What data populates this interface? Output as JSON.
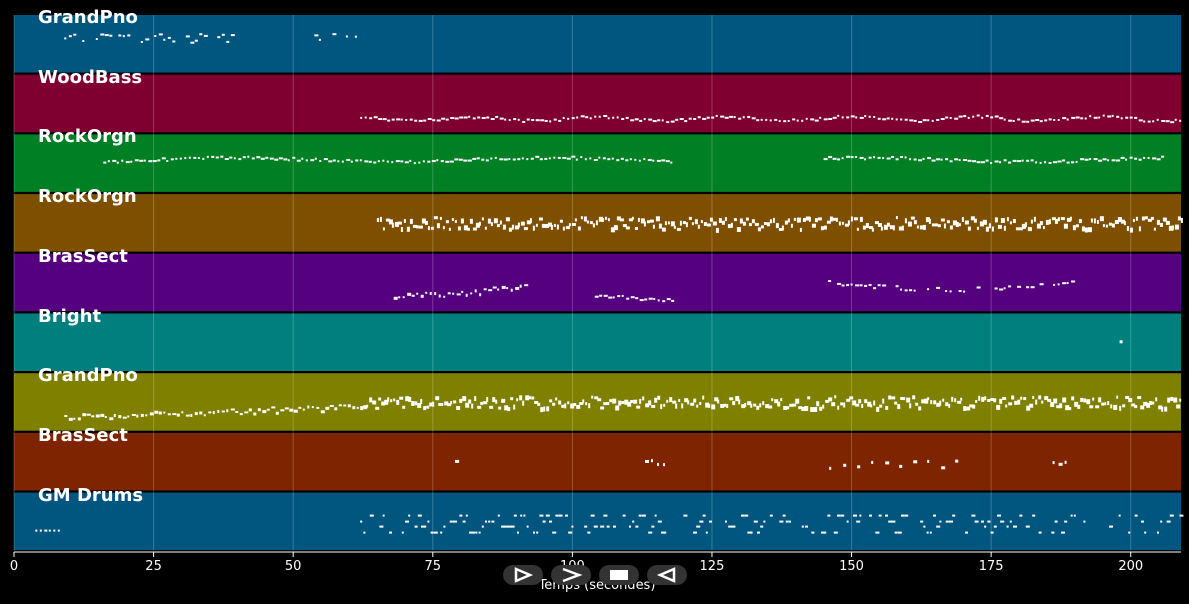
{
  "tracks": [
    {
      "name": "GrandPno",
      "color": "#00567f"
    },
    {
      "name": "WoodBass",
      "color": "#7f0030"
    },
    {
      "name": "RockOrgn",
      "color": "#007f24"
    },
    {
      "name": "RockOrgn",
      "color": "#7f4f00"
    },
    {
      "name": "BrasSect",
      "color": "#55007f"
    },
    {
      "name": "Bright",
      "color": "#007f7f"
    },
    {
      "name": "GrandPno",
      "color": "#7f7f00"
    },
    {
      "name": "BrasSect",
      "color": "#7f2400"
    },
    {
      "name": "GM Drums",
      "color": "#00567f"
    }
  ],
  "axis": {
    "xlabel": "Temps (secondes)",
    "xlim": [
      0,
      209
    ],
    "ticks": [
      "0",
      "25",
      "50",
      "75",
      "100",
      "125",
      "150",
      "175",
      "200"
    ],
    "grid": true
  },
  "controls": [
    {
      "name": "play-icon"
    },
    {
      "name": "forward-icon"
    },
    {
      "name": "stop-icon"
    },
    {
      "name": "rewind-icon"
    }
  ],
  "chart_data": {
    "type": "scatter",
    "title": "",
    "xlabel": "Temps (secondes)",
    "xlim": [
      0,
      209
    ],
    "note_color": "#ffffff",
    "series": [
      {
        "name": "GrandPno",
        "segments": [
          [
            9,
            39,
            "low"
          ],
          [
            53,
            62,
            "low"
          ]
        ]
      },
      {
        "name": "WoodBass",
        "segments": [
          [
            62,
            209,
            "flat"
          ]
        ]
      },
      {
        "name": "RockOrgn",
        "segments": [
          [
            16,
            118,
            "wave"
          ],
          [
            145,
            206,
            "wave"
          ]
        ]
      },
      {
        "name": "RockOrgn",
        "segments": [
          [
            65,
            209,
            "dense"
          ]
        ]
      },
      {
        "name": "BrasSect",
        "segments": [
          [
            68,
            92,
            "rise"
          ],
          [
            104,
            118,
            "flat"
          ],
          [
            145,
            190,
            "arc"
          ]
        ]
      },
      {
        "name": "Bright",
        "segments": [
          [
            198,
            199,
            "dot"
          ]
        ]
      },
      {
        "name": "GrandPno",
        "segments": [
          [
            9,
            62,
            "rise"
          ],
          [
            62,
            209,
            "dense"
          ]
        ]
      },
      {
        "name": "BrasSect",
        "segments": [
          [
            79,
            80,
            "dot"
          ],
          [
            113,
            117,
            "dot"
          ],
          [
            146,
            170,
            "sparse"
          ],
          [
            186,
            189,
            "dot"
          ]
        ]
      },
      {
        "name": "GM Drums",
        "segments": [
          [
            3,
            9,
            "drumlow"
          ],
          [
            62,
            209,
            "drums"
          ]
        ]
      }
    ]
  }
}
